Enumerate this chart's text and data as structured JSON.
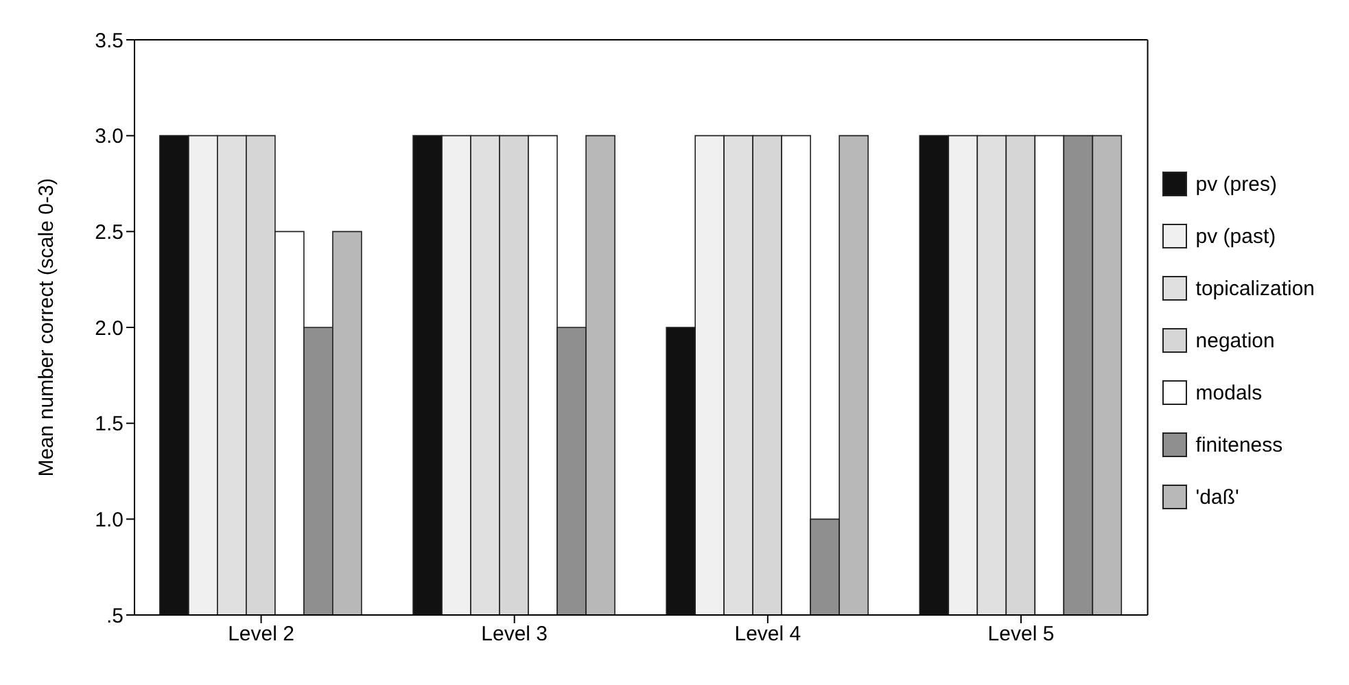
{
  "chart_data": {
    "type": "bar",
    "ylabel": "Mean number correct (scale 0-3)",
    "categories": [
      "Level 2",
      "Level 3",
      "Level 4",
      "Level 5"
    ],
    "series": [
      {
        "name": "pv (pres)",
        "color": "#111111",
        "values": [
          3,
          3,
          2,
          3
        ]
      },
      {
        "name": "pv (past)",
        "color": "#f0f0f0",
        "values": [
          3,
          3,
          3,
          3
        ]
      },
      {
        "name": "topicalization",
        "color": "#e0e0e0",
        "values": [
          3,
          3,
          3,
          3
        ]
      },
      {
        "name": "negation",
        "color": "#d6d6d6",
        "values": [
          3,
          3,
          3,
          3
        ]
      },
      {
        "name": "modals",
        "color": "#ffffff",
        "values": [
          2.5,
          3,
          3,
          3
        ]
      },
      {
        "name": "finiteness",
        "color": "#8f8f8f",
        "values": [
          2,
          2,
          1,
          3
        ]
      },
      {
        "name": "'daß'",
        "color": "#b8b8b8",
        "values": [
          2.5,
          3,
          3,
          3
        ]
      }
    ],
    "ylim": [
      0.5,
      3.5
    ],
    "yticks": [
      {
        "value": 0.5,
        "label": ".5"
      },
      {
        "value": 1,
        "label": "1.0"
      },
      {
        "value": 1.5,
        "label": "1.5"
      },
      {
        "value": 2,
        "label": "2.0"
      },
      {
        "value": 2.5,
        "label": "2.5"
      },
      {
        "value": 3,
        "label": "3.0"
      },
      {
        "value": 3.5,
        "label": "3.5"
      }
    ],
    "grid": false,
    "legend": "right"
  }
}
